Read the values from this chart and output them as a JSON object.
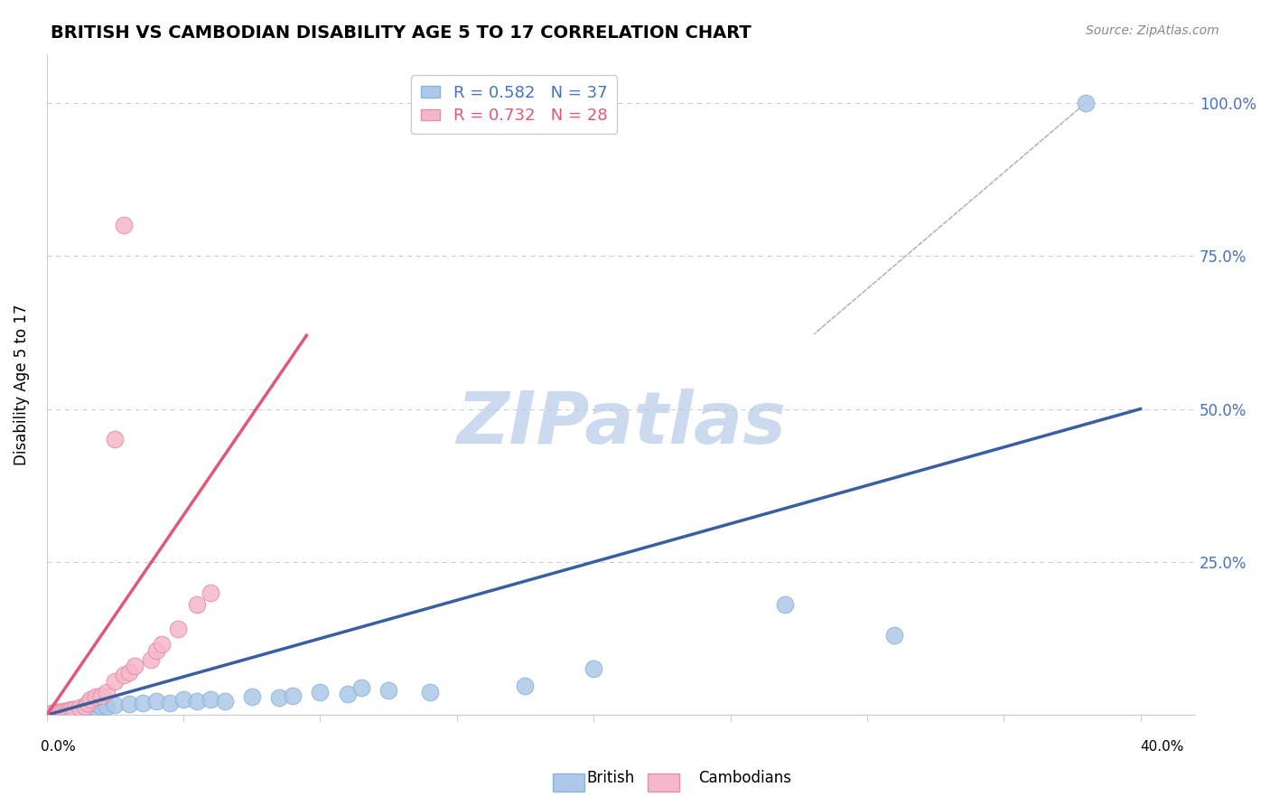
{
  "title": "BRITISH VS CAMBODIAN DISABILITY AGE 5 TO 17 CORRELATION CHART",
  "source": "Source: ZipAtlas.com",
  "ylabel": "Disability Age 5 to 17",
  "legend_british": "British",
  "legend_cambodians": "Cambodians",
  "R_british": 0.582,
  "N_british": 37,
  "R_cambodian": 0.732,
  "N_cambodian": 28,
  "british_color": "#adc8e8",
  "cambodian_color": "#f5b8c8",
  "british_line_color": "#3a5fa0",
  "cambodian_line_color": "#e05878",
  "british_points": [
    [
      0.002,
      0.003
    ],
    [
      0.003,
      0.004
    ],
    [
      0.004,
      0.003
    ],
    [
      0.005,
      0.005
    ],
    [
      0.006,
      0.004
    ],
    [
      0.007,
      0.005
    ],
    [
      0.008,
      0.005
    ],
    [
      0.009,
      0.006
    ],
    [
      0.01,
      0.007
    ],
    [
      0.012,
      0.008
    ],
    [
      0.014,
      0.009
    ],
    [
      0.016,
      0.01
    ],
    [
      0.018,
      0.012
    ],
    [
      0.02,
      0.013
    ],
    [
      0.022,
      0.014
    ],
    [
      0.025,
      0.016
    ],
    [
      0.03,
      0.018
    ],
    [
      0.035,
      0.02
    ],
    [
      0.04,
      0.022
    ],
    [
      0.045,
      0.02
    ],
    [
      0.05,
      0.025
    ],
    [
      0.055,
      0.022
    ],
    [
      0.06,
      0.025
    ],
    [
      0.065,
      0.022
    ],
    [
      0.075,
      0.03
    ],
    [
      0.085,
      0.028
    ],
    [
      0.09,
      0.032
    ],
    [
      0.1,
      0.038
    ],
    [
      0.11,
      0.035
    ],
    [
      0.115,
      0.045
    ],
    [
      0.125,
      0.04
    ],
    [
      0.14,
      0.038
    ],
    [
      0.175,
      0.048
    ],
    [
      0.2,
      0.075
    ],
    [
      0.27,
      0.18
    ],
    [
      0.31,
      0.13
    ],
    [
      0.38,
      0.999
    ]
  ],
  "cambodian_points": [
    [
      0.002,
      0.003
    ],
    [
      0.003,
      0.004
    ],
    [
      0.004,
      0.005
    ],
    [
      0.005,
      0.005
    ],
    [
      0.006,
      0.006
    ],
    [
      0.007,
      0.007
    ],
    [
      0.008,
      0.008
    ],
    [
      0.009,
      0.009
    ],
    [
      0.01,
      0.01
    ],
    [
      0.012,
      0.012
    ],
    [
      0.014,
      0.014
    ],
    [
      0.015,
      0.02
    ],
    [
      0.016,
      0.025
    ],
    [
      0.018,
      0.03
    ],
    [
      0.02,
      0.032
    ],
    [
      0.022,
      0.038
    ],
    [
      0.025,
      0.055
    ],
    [
      0.028,
      0.065
    ],
    [
      0.03,
      0.07
    ],
    [
      0.032,
      0.08
    ],
    [
      0.038,
      0.09
    ],
    [
      0.04,
      0.105
    ],
    [
      0.042,
      0.115
    ],
    [
      0.048,
      0.14
    ],
    [
      0.055,
      0.18
    ],
    [
      0.06,
      0.2
    ],
    [
      0.025,
      0.45
    ],
    [
      0.028,
      0.8
    ]
  ],
  "british_line": [
    [
      0.0,
      0.0
    ],
    [
      0.4,
      0.5
    ]
  ],
  "cambodian_line": [
    [
      0.0,
      0.0
    ],
    [
      0.095,
      0.62
    ]
  ],
  "dashed_line": [
    [
      0.38,
      0.999
    ],
    [
      0.4,
      0.999
    ]
  ],
  "yticks": [
    0.0,
    0.25,
    0.5,
    0.75,
    1.0
  ],
  "ytick_labels": [
    "",
    "25.0%",
    "50.0%",
    "75.0%",
    "100.0%"
  ],
  "xlim": [
    0.0,
    0.42
  ],
  "ylim": [
    0.0,
    1.08
  ],
  "background_color": "#ffffff",
  "grid_color": "#c8c8c8",
  "watermark_color": "#ccdaf0",
  "title_fontsize": 14,
  "source_fontsize": 10,
  "axis_label_fontsize": 12,
  "tick_label_fontsize": 12
}
